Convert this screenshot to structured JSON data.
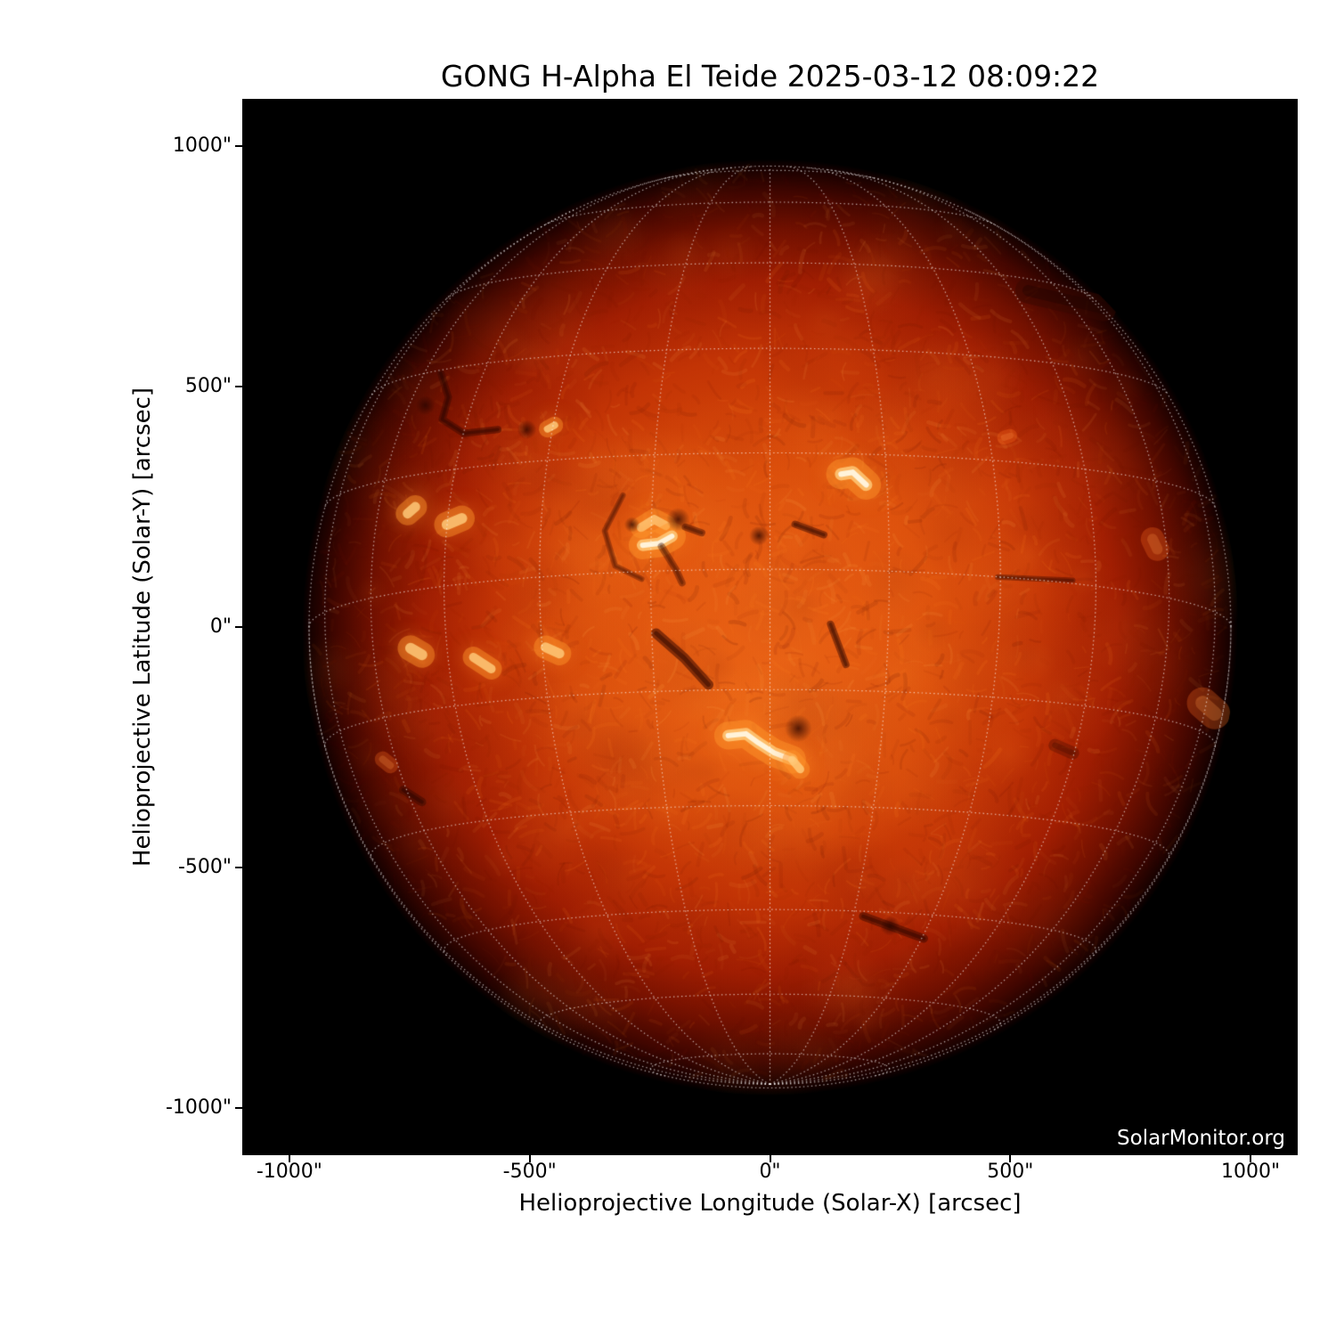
{
  "title": "GONG H-Alpha El Teide 2025-03-12 08:09:22",
  "watermark": "SolarMonitor.org",
  "chart_data": {
    "type": "heatmap",
    "description": "Full-disk GONG H-alpha image of the Sun with heliographic coordinate grid overlay",
    "title": "GONG H-Alpha El Teide 2025-03-12 08:09:22",
    "xlabel": "Helioprojective Longitude (Solar-X) [arcsec]",
    "ylabel": "Helioprojective Latitude (Solar-Y) [arcsec]",
    "xlim": [
      -1098,
      1098
    ],
    "ylim": [
      -1098,
      1098
    ],
    "grid": "on",
    "legend": "none",
    "x_ticks": [
      {
        "value": -1000,
        "label": "-1000\""
      },
      {
        "value": -500,
        "label": "-500\""
      },
      {
        "value": 0,
        "label": "0\""
      },
      {
        "value": 500,
        "label": "500\""
      },
      {
        "value": 1000,
        "label": "1000\""
      }
    ],
    "y_ticks": [
      {
        "value": 1000,
        "label": "1000\""
      },
      {
        "value": 500,
        "label": "500\""
      },
      {
        "value": 0,
        "label": "0\""
      },
      {
        "value": -500,
        "label": "-500\""
      },
      {
        "value": -1000,
        "label": "-1000\""
      }
    ],
    "solar_disk": {
      "radius_arcsec": 959,
      "b0_deg": -7.2,
      "grid_spacing_deg": 15,
      "colors": {
        "background": "#000000",
        "disk_center": "#e65a10",
        "disk_mid": "#c23305",
        "disk_limb": "#400600",
        "grid_dots": "rgba(255,255,255,0.66)",
        "plage_core": "#fff6e0",
        "plage_glow": "#ff9630",
        "filament": "#370500"
      },
      "plages": [
        {
          "points": [
            [
              148,
              318
            ],
            [
              172,
              322
            ],
            [
              200,
              296
            ]
          ],
          "width": 14,
          "core": true
        },
        {
          "points": [
            [
              -268,
              207
            ],
            [
              -241,
              224
            ],
            [
              -217,
              211
            ]
          ],
          "width": 10,
          "core": false
        },
        {
          "points": [
            [
              -265,
              170
            ],
            [
              -231,
              174
            ],
            [
              -204,
              189
            ]
          ],
          "width": 13,
          "core": true
        },
        {
          "points": [
            [
              -87,
              -226
            ],
            [
              -50,
              -222
            ],
            [
              -24,
              -241
            ],
            [
              9,
              -262
            ],
            [
              46,
              -276
            ]
          ],
          "width": 13,
          "core": true
        },
        {
          "points": [
            [
              46,
              -276
            ],
            [
              63,
              -296
            ]
          ],
          "width": 9,
          "core": false
        },
        {
          "points": [
            [
              -754,
              236
            ],
            [
              -738,
              250
            ]
          ],
          "width": 11,
          "core": false
        },
        {
          "points": [
            [
              -672,
              213
            ],
            [
              -641,
              226
            ]
          ],
          "width": 12,
          "core": false
        },
        {
          "points": [
            [
              -748,
              -44
            ],
            [
              -724,
              -58
            ]
          ],
          "width": 12,
          "core": false
        },
        {
          "points": [
            [
              -617,
              -63
            ],
            [
              -580,
              -87
            ]
          ],
          "width": 10,
          "core": false
        },
        {
          "points": [
            [
              -467,
              -42
            ],
            [
              -438,
              -55
            ]
          ],
          "width": 11,
          "core": false
        },
        {
          "points": [
            [
              -463,
              412
            ],
            [
              -448,
              420
            ]
          ],
          "width": 8,
          "core": false
        },
        {
          "points": [
            [
              806,
              162
            ],
            [
              796,
              183
            ]
          ],
          "width": 12,
          "dim": true
        },
        {
          "points": [
            [
              900,
              -158
            ],
            [
              925,
              -180
            ]
          ],
          "width": 16,
          "dim": true
        },
        {
          "points": [
            [
              487,
              394
            ],
            [
              500,
              398
            ]
          ],
          "width": 7,
          "dim": true
        },
        {
          "points": [
            [
              -806,
              -275
            ],
            [
              -790,
              -288
            ]
          ],
          "width": 8,
          "dim": true
        }
      ],
      "filaments": [
        {
          "points": [
            [
              -685,
              528
            ],
            [
              -669,
              478
            ],
            [
              -682,
              432
            ],
            [
              -637,
              403
            ],
            [
              -566,
              411
            ]
          ],
          "width": 5,
          "alpha": 0.5
        },
        {
          "points": [
            [
              -237,
              -13
            ],
            [
              -178,
              -65
            ],
            [
              -128,
              -120
            ]
          ],
          "width": 7,
          "alpha": 0.55
        },
        {
          "points": [
            [
              52,
              214
            ],
            [
              112,
              192
            ]
          ],
          "width": 5,
          "alpha": 0.5
        },
        {
          "points": [
            [
              126,
              6
            ],
            [
              158,
              -78
            ]
          ],
          "width": 5,
          "alpha": 0.5
        },
        {
          "points": [
            [
              474,
              104
            ],
            [
              630,
              97
            ]
          ],
          "width": 4,
          "alpha": 0.4
        },
        {
          "points": [
            [
              -306,
              274
            ],
            [
              -344,
              200
            ],
            [
              -322,
              127
            ],
            [
              -267,
              100
            ]
          ],
          "width": 4,
          "alpha": 0.35
        },
        {
          "points": [
            [
              -226,
              168
            ],
            [
              -196,
              120
            ],
            [
              -183,
              92
            ]
          ],
          "width": 5,
          "alpha": 0.4
        },
        {
          "points": [
            [
              194,
              -602
            ],
            [
              320,
              -648
            ]
          ],
          "width": 6,
          "alpha": 0.5
        },
        {
          "points": [
            [
              -763,
              -339
            ],
            [
              -724,
              -364
            ]
          ],
          "width": 6,
          "alpha": 0.5
        },
        {
          "points": [
            [
              537,
              700
            ],
            [
              694,
              663
            ]
          ],
          "width": 18,
          "alpha": 0.5
        },
        {
          "points": [
            [
              593,
              -246
            ],
            [
              630,
              -262
            ]
          ],
          "width": 9,
          "alpha": 0.3
        },
        {
          "points": [
            [
              -176,
              208
            ],
            [
              -142,
              196
            ]
          ],
          "width": 5,
          "alpha": 0.45
        }
      ],
      "spots": [
        {
          "x": -717,
          "y": 461,
          "r": 5
        },
        {
          "x": -506,
          "y": 411,
          "r": 5
        },
        {
          "x": -191,
          "y": 224,
          "r": 6
        },
        {
          "x": -287,
          "y": 213,
          "r": 4
        },
        {
          "x": 59,
          "y": -211,
          "r": 7
        },
        {
          "x": 250,
          "y": -622,
          "r": 5
        },
        {
          "x": -23,
          "y": 190,
          "r": 5
        }
      ]
    }
  }
}
